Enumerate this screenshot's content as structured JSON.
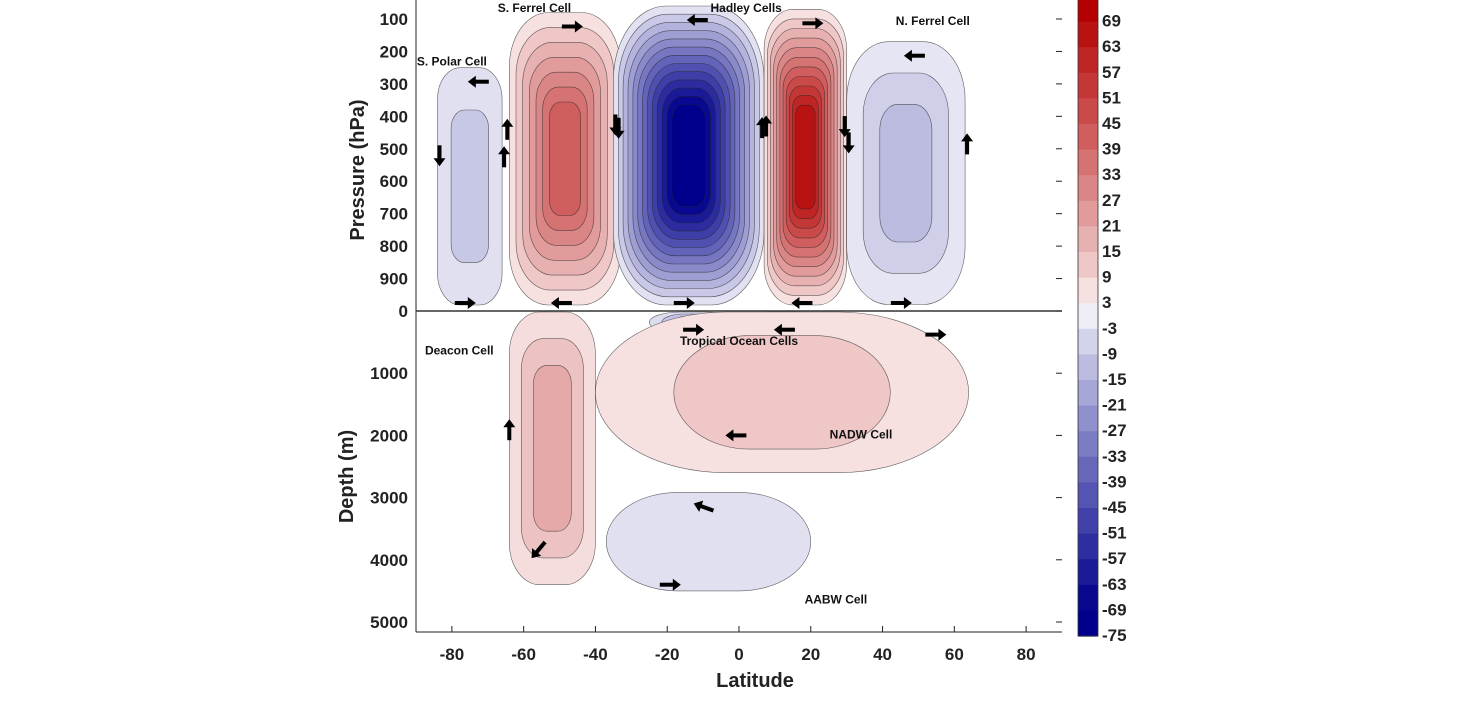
{
  "chart_data": {
    "type": "heatmap",
    "title": "",
    "xlabel": "Latitude",
    "ylabel_top": "Pressure (hPa)",
    "ylabel_bottom": "Depth (m)",
    "xlim": [
      -90,
      90
    ],
    "x_ticks": [
      -80,
      -60,
      -40,
      -20,
      0,
      20,
      40,
      60,
      80
    ],
    "pressure_ticks": [
      100,
      200,
      300,
      400,
      500,
      600,
      700,
      800,
      900,
      0
    ],
    "depth_ticks": [
      1000,
      2000,
      3000,
      4000,
      5000
    ],
    "colorbar": {
      "labels": [
        69,
        63,
        57,
        51,
        45,
        39,
        33,
        27,
        21,
        15,
        9,
        3,
        -3,
        -9,
        -15,
        -21,
        -27,
        -33,
        -39,
        -45,
        -51,
        -57,
        -63,
        -69,
        -75
      ],
      "positive_color": "#b40000",
      "negative_color": "#00008c",
      "neutral_color": "#ffffff"
    },
    "cells": [
      {
        "name": "S. Polar Cell",
        "domain": "atmosphere",
        "lat": [
          -84,
          -66
        ],
        "p": [
          250,
          990
        ],
        "peak": -12,
        "arrows": "counterclockwise"
      },
      {
        "name": "S. Ferrel Cell",
        "domain": "atmosphere",
        "lat": [
          -64,
          -33
        ],
        "p": [
          80,
          990
        ],
        "peak": 42
      },
      {
        "name": "Hadley Cells",
        "domain": "atmosphere",
        "lat": [
          -35,
          7
        ],
        "p": [
          60,
          990
        ],
        "peak": -75
      },
      {
        "name": "Hadley Cells",
        "domain": "atmosphere",
        "lat": [
          7,
          30
        ],
        "p": [
          70,
          990
        ],
        "peak": 66
      },
      {
        "name": "N. Ferrel Cell",
        "domain": "atmosphere",
        "lat": [
          30,
          63
        ],
        "p": [
          170,
          980
        ],
        "peak": -15
      },
      {
        "name": "Deacon Cell",
        "domain": "ocean",
        "lat": [
          -64,
          -40
        ],
        "depth": [
          0,
          4400
        ],
        "peak": 20
      },
      {
        "name": "Tropical Ocean Cells",
        "domain": "ocean",
        "lat": [
          -25,
          0
        ],
        "depth": [
          0,
          350
        ],
        "peak": -20
      },
      {
        "name": "Tropical Ocean Cells",
        "domain": "ocean",
        "lat": [
          0,
          25
        ],
        "depth": [
          0,
          350
        ],
        "peak": 15
      },
      {
        "name": "NADW Cell",
        "domain": "ocean",
        "lat": [
          -40,
          64
        ],
        "depth": [
          0,
          2600
        ],
        "peak": 12
      },
      {
        "name": "AABW Cell",
        "domain": "ocean",
        "lat": [
          -37,
          20
        ],
        "depth": [
          2900,
          4500
        ],
        "peak": -6
      }
    ]
  }
}
